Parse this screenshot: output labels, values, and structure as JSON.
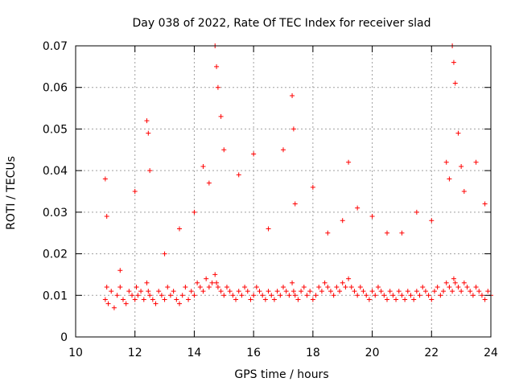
{
  "chart_data": {
    "type": "scatter",
    "title": "Day 038 of 2022, Rate Of TEC Index for receiver slad",
    "xlabel": "GPS time / hours",
    "ylabel": "ROTI / TECUs",
    "xlim": [
      10,
      24
    ],
    "ylim": [
      0,
      0.07
    ],
    "x_ticks": [
      10,
      12,
      14,
      16,
      18,
      20,
      22,
      24
    ],
    "y_ticks": [
      0,
      0.01,
      0.02,
      0.03,
      0.04,
      0.05,
      0.06,
      0.07
    ],
    "x_tick_labels": [
      "10",
      "12",
      "14",
      "16",
      "18",
      "20",
      "22",
      "24"
    ],
    "y_tick_labels": [
      "0",
      "0.01",
      "0.02",
      "0.03",
      "0.04",
      "0.05",
      "0.06",
      "0.07"
    ],
    "grid": true,
    "marker": "+",
    "series": [
      {
        "name": "ROTI",
        "color": "#ff0000",
        "x": [
          11.0,
          11.05,
          11.1,
          11.2,
          11.3,
          11.4,
          11.5,
          11.6,
          11.7,
          11.8,
          11.9,
          12.0,
          12.05,
          12.1,
          12.2,
          12.3,
          12.4,
          12.45,
          12.5,
          12.6,
          12.7,
          12.8,
          12.9,
          13.0,
          13.1,
          13.2,
          13.3,
          13.4,
          13.5,
          13.6,
          13.7,
          13.8,
          13.9,
          14.0,
          14.1,
          14.2,
          14.3,
          14.4,
          14.5,
          14.6,
          14.7,
          14.75,
          14.8,
          14.9,
          15.0,
          15.1,
          15.2,
          15.3,
          15.4,
          15.5,
          15.6,
          15.7,
          15.8,
          15.9,
          16.0,
          16.1,
          16.2,
          16.3,
          16.4,
          16.5,
          16.6,
          16.7,
          16.8,
          16.9,
          17.0,
          17.1,
          17.2,
          17.3,
          17.35,
          17.4,
          17.5,
          17.6,
          17.7,
          17.8,
          17.9,
          18.0,
          18.1,
          18.2,
          18.3,
          18.4,
          18.5,
          18.6,
          18.7,
          18.8,
          18.9,
          19.0,
          19.1,
          19.2,
          19.3,
          19.4,
          19.5,
          19.6,
          19.7,
          19.8,
          19.9,
          20.0,
          20.1,
          20.2,
          20.3,
          20.4,
          20.5,
          20.6,
          20.7,
          20.8,
          20.9,
          21.0,
          21.1,
          21.2,
          21.3,
          21.4,
          21.5,
          21.6,
          21.7,
          21.8,
          21.9,
          22.0,
          22.1,
          22.2,
          22.3,
          22.4,
          22.5,
          22.6,
          22.7,
          22.75,
          22.8,
          22.9,
          23.0,
          23.1,
          23.2,
          23.3,
          23.4,
          23.5,
          23.6,
          23.7,
          23.8,
          23.9,
          24.0,
          11.0,
          11.05,
          11.5,
          12.0,
          12.4,
          12.45,
          12.5,
          13.0,
          13.5,
          14.0,
          14.3,
          14.5,
          14.7,
          14.75,
          14.8,
          14.9,
          15.0,
          15.5,
          16.0,
          16.5,
          17.0,
          17.3,
          17.35,
          17.4,
          18.0,
          18.5,
          19.0,
          19.2,
          19.5,
          20.0,
          20.5,
          21.0,
          21.5,
          22.0,
          22.5,
          22.6,
          22.7,
          22.75,
          22.8,
          22.9,
          23.0,
          23.1,
          23.5,
          23.8
        ],
        "y": [
          0.009,
          0.012,
          0.008,
          0.011,
          0.007,
          0.01,
          0.012,
          0.009,
          0.008,
          0.011,
          0.01,
          0.009,
          0.012,
          0.01,
          0.011,
          0.009,
          0.013,
          0.011,
          0.01,
          0.009,
          0.008,
          0.011,
          0.01,
          0.009,
          0.012,
          0.01,
          0.011,
          0.009,
          0.008,
          0.01,
          0.012,
          0.009,
          0.011,
          0.01,
          0.013,
          0.012,
          0.011,
          0.014,
          0.012,
          0.013,
          0.015,
          0.013,
          0.012,
          0.011,
          0.01,
          0.012,
          0.011,
          0.01,
          0.009,
          0.011,
          0.01,
          0.012,
          0.011,
          0.009,
          0.01,
          0.012,
          0.011,
          0.01,
          0.009,
          0.011,
          0.01,
          0.009,
          0.011,
          0.01,
          0.012,
          0.011,
          0.01,
          0.013,
          0.011,
          0.01,
          0.009,
          0.011,
          0.012,
          0.01,
          0.011,
          0.009,
          0.01,
          0.012,
          0.011,
          0.013,
          0.012,
          0.011,
          0.01,
          0.012,
          0.011,
          0.013,
          0.012,
          0.014,
          0.012,
          0.011,
          0.01,
          0.012,
          0.011,
          0.01,
          0.009,
          0.011,
          0.01,
          0.012,
          0.011,
          0.01,
          0.009,
          0.011,
          0.01,
          0.009,
          0.011,
          0.01,
          0.009,
          0.011,
          0.01,
          0.009,
          0.011,
          0.01,
          0.012,
          0.011,
          0.01,
          0.009,
          0.011,
          0.012,
          0.01,
          0.011,
          0.013,
          0.012,
          0.011,
          0.014,
          0.013,
          0.012,
          0.011,
          0.013,
          0.012,
          0.011,
          0.01,
          0.012,
          0.011,
          0.01,
          0.009,
          0.011,
          0.01,
          0.038,
          0.029,
          0.016,
          0.035,
          0.052,
          0.049,
          0.04,
          0.02,
          0.026,
          0.03,
          0.041,
          0.037,
          0.07,
          0.065,
          0.06,
          0.053,
          0.045,
          0.039,
          0.044,
          0.026,
          0.045,
          0.058,
          0.05,
          0.032,
          0.036,
          0.025,
          0.028,
          0.042,
          0.031,
          0.029,
          0.025,
          0.025,
          0.03,
          0.028,
          0.042,
          0.038,
          0.07,
          0.066,
          0.061,
          0.049,
          0.041,
          0.035,
          0.042,
          0.032
        ]
      }
    ]
  }
}
